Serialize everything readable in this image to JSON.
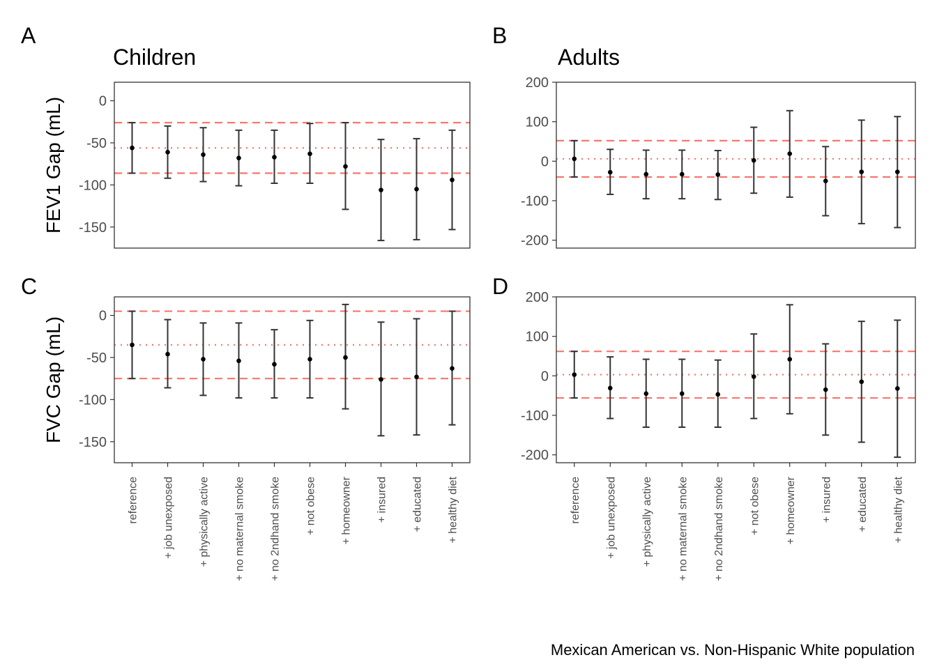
{
  "caption": "Mexican American vs. Non-Hispanic White population",
  "colors": {
    "point": "#000000",
    "errorbar": "#333333",
    "reference_line": "#F8766D",
    "panel_border": "#333333"
  },
  "chart_data": [
    {
      "type": "errorbar",
      "panel_tag": "A",
      "title": "Children",
      "ylabel": "FEV1 Gap (mL)",
      "ylim": [
        -175,
        22
      ],
      "yticks": [
        0,
        -50,
        -100,
        -150
      ],
      "categories": [
        "reference",
        "+ job unexposed",
        "+ physically active",
        "+ no maternal smoke",
        "+ no 2ndhand smoke",
        "+ not obese",
        "+ homeowner",
        "+ insured",
        "+ educated",
        "+ healthy diet"
      ],
      "estimates": [
        -56,
        -61,
        -64,
        -68,
        -67,
        -63,
        -78,
        -106,
        -105,
        -94
      ],
      "lower": [
        -86,
        -92,
        -96,
        -101,
        -98,
        -98,
        -129,
        -166,
        -165,
        -153
      ],
      "upper": [
        -26,
        -30,
        -32,
        -35,
        -35,
        -27,
        -26,
        -46,
        -45,
        -35
      ],
      "reference_lines": {
        "estimate": -56,
        "lower": -86,
        "upper": -26
      }
    },
    {
      "type": "errorbar",
      "panel_tag": "B",
      "title": "Adults",
      "ylabel": "",
      "ylim": [
        -220,
        200
      ],
      "yticks": [
        200,
        100,
        0,
        -100,
        -200
      ],
      "categories": [
        "reference",
        "+ job unexposed",
        "+ physically active",
        "+ no maternal smoke",
        "+ no 2ndhand smoke",
        "+ not obese",
        "+ homeowner",
        "+ insured",
        "+ educated",
        "+ healthy diet"
      ],
      "estimates": [
        6,
        -28,
        -33,
        -33,
        -34,
        2,
        19,
        -50,
        -27,
        -27
      ],
      "lower": [
        -40,
        -84,
        -95,
        -95,
        -97,
        -81,
        -91,
        -138,
        -158,
        -168
      ],
      "upper": [
        52,
        30,
        28,
        28,
        27,
        86,
        128,
        37,
        104,
        113
      ],
      "reference_lines": {
        "estimate": 6,
        "lower": -40,
        "upper": 52
      }
    },
    {
      "type": "errorbar",
      "panel_tag": "C",
      "title": "",
      "ylabel": "FVC Gap (mL)",
      "ylim": [
        -175,
        22
      ],
      "yticks": [
        0,
        -50,
        -100,
        -150
      ],
      "categories": [
        "reference",
        "+ job unexposed",
        "+ physically active",
        "+ no maternal smoke",
        "+ no 2ndhand smoke",
        "+ not obese",
        "+ homeowner",
        "+ insured",
        "+ educated",
        "+ healthy diet"
      ],
      "estimates": [
        -35,
        -46,
        -52,
        -54,
        -58,
        -52,
        -50,
        -76,
        -73,
        -63
      ],
      "lower": [
        -75,
        -86,
        -95,
        -98,
        -98,
        -98,
        -111,
        -143,
        -142,
        -130
      ],
      "upper": [
        5,
        -5,
        -9,
        -9,
        -17,
        -6,
        13,
        -8,
        -4,
        5
      ],
      "reference_lines": {
        "estimate": -35,
        "lower": -75,
        "upper": 5
      }
    },
    {
      "type": "errorbar",
      "panel_tag": "D",
      "title": "",
      "ylabel": "",
      "ylim": [
        -220,
        200
      ],
      "yticks": [
        200,
        100,
        0,
        -100,
        -200
      ],
      "categories": [
        "reference",
        "+ job unexposed",
        "+ physically active",
        "+ no maternal smoke",
        "+ no 2ndhand smoke",
        "+ not obese",
        "+ homeowner",
        "+ insured",
        "+ educated",
        "+ healthy diet"
      ],
      "estimates": [
        3,
        -31,
        -45,
        -45,
        -47,
        -2,
        42,
        -35,
        -15,
        -32
      ],
      "lower": [
        -56,
        -108,
        -130,
        -130,
        -130,
        -108,
        -96,
        -150,
        -168,
        -206
      ],
      "upper": [
        62,
        48,
        42,
        42,
        40,
        106,
        180,
        81,
        138,
        141
      ],
      "reference_lines": {
        "estimate": 3,
        "lower": -56,
        "upper": 62
      }
    }
  ]
}
